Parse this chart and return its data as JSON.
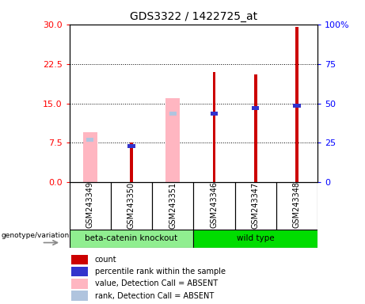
{
  "title": "GDS3322 / 1422725_at",
  "samples": [
    "GSM243349",
    "GSM243350",
    "GSM243351",
    "GSM243346",
    "GSM243347",
    "GSM243348"
  ],
  "groups": [
    "beta-catenin knockout",
    "beta-catenin knockout",
    "beta-catenin knockout",
    "wild type",
    "wild type",
    "wild type"
  ],
  "ylim_left": [
    0,
    30
  ],
  "ylim_right": [
    0,
    100
  ],
  "yticks_left": [
    0,
    7.5,
    15,
    22.5,
    30
  ],
  "yticks_right": [
    0,
    25,
    50,
    75,
    100
  ],
  "yticklabels_right": [
    "0",
    "25",
    "50",
    "75",
    "100%"
  ],
  "red_bars": [
    null,
    7.5,
    null,
    21.0,
    20.5,
    29.5
  ],
  "blue_bars_top": [
    null,
    7.3,
    null,
    13.5,
    14.5,
    15.0
  ],
  "blue_bars_height": [
    null,
    0.8,
    null,
    0.8,
    0.8,
    0.8
  ],
  "pink_bars": [
    9.5,
    null,
    16.0,
    null,
    null,
    null
  ],
  "lightblue_bars_top": [
    8.5,
    null,
    13.5,
    null,
    null,
    null
  ],
  "lightblue_bars_height": [
    0.8,
    null,
    0.8,
    null,
    null,
    null
  ],
  "red_color": "#CC0000",
  "blue_color": "#3333CC",
  "absent_pink_color": "#FFB6C1",
  "absent_blue_color": "#B0C4DE",
  "legend_items": [
    {
      "label": "count",
      "color": "#CC0000"
    },
    {
      "label": "percentile rank within the sample",
      "color": "#3333CC"
    },
    {
      "label": "value, Detection Call = ABSENT",
      "color": "#FFB6C1"
    },
    {
      "label": "rank, Detection Call = ABSENT",
      "color": "#B0C4DE"
    }
  ],
  "plot_bg_color": "#FFFFFF",
  "label_bg_color": "#C8C8C8",
  "group1_color": "#90EE90",
  "group2_color": "#00DD00",
  "genotype_label": "genotype/variation"
}
